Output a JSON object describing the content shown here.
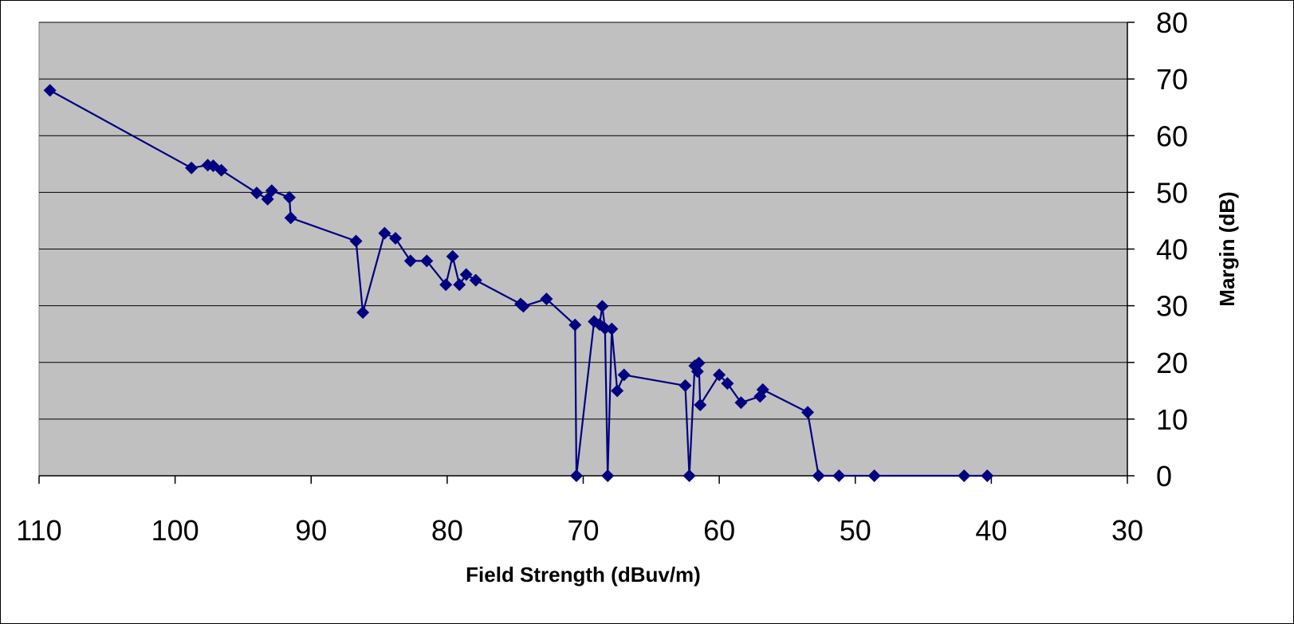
{
  "chart_data": {
    "type": "line",
    "title": "",
    "xlabel": "Field Strength (dBuv/m)",
    "ylabel": "Margin (dB)",
    "xlim": [
      110,
      30
    ],
    "x_reversed": true,
    "ylim": [
      0,
      80
    ],
    "x_ticks": [
      110,
      100,
      90,
      80,
      70,
      60,
      50,
      40,
      30
    ],
    "y_ticks": [
      0,
      10,
      20,
      30,
      40,
      50,
      60,
      70,
      80
    ],
    "y_axis_position": "right",
    "grid": "horizontal",
    "plot_background": "#C0C0C0",
    "series_color": "#000080",
    "marker": "diamond",
    "series": [
      {
        "points": [
          [
            109.2,
            68.0
          ],
          [
            98.8,
            54.3
          ],
          [
            97.6,
            54.8
          ],
          [
            97.2,
            54.7
          ],
          [
            96.6,
            53.9
          ],
          [
            94.0,
            49.9
          ],
          [
            93.2,
            48.8
          ],
          [
            92.9,
            50.3
          ],
          [
            91.6,
            49.1
          ],
          [
            91.5,
            45.5
          ],
          [
            86.7,
            41.4
          ],
          [
            86.2,
            28.8
          ],
          [
            84.6,
            42.8
          ],
          [
            83.8,
            41.9
          ],
          [
            82.7,
            37.9
          ],
          [
            81.5,
            37.9
          ],
          [
            80.1,
            33.7
          ],
          [
            79.6,
            38.7
          ],
          [
            79.1,
            33.7
          ],
          [
            78.6,
            35.5
          ],
          [
            77.9,
            34.5
          ],
          [
            74.6,
            30.3
          ],
          [
            74.4,
            29.9
          ],
          [
            72.7,
            31.2
          ],
          [
            70.6,
            26.6
          ],
          [
            70.5,
            0.0
          ],
          [
            69.2,
            27.2
          ],
          [
            68.8,
            26.7
          ],
          [
            68.6,
            29.9
          ],
          [
            68.4,
            26.0
          ],
          [
            68.2,
            0.0
          ],
          [
            67.9,
            25.9
          ],
          [
            67.5,
            15.0
          ],
          [
            67.0,
            17.8
          ],
          [
            62.5,
            15.9
          ],
          [
            62.2,
            0.0
          ],
          [
            61.8,
            19.4
          ],
          [
            61.6,
            18.4
          ],
          [
            61.5,
            19.9
          ],
          [
            61.4,
            12.5
          ],
          [
            60.0,
            17.8
          ],
          [
            59.4,
            16.3
          ],
          [
            58.4,
            12.9
          ],
          [
            57.0,
            14.0
          ],
          [
            56.8,
            15.2
          ],
          [
            53.5,
            11.2
          ],
          [
            52.7,
            0.0
          ],
          [
            51.2,
            0.0
          ],
          [
            48.6,
            0.0
          ],
          [
            42.0,
            0.0
          ],
          [
            40.3,
            0.0
          ]
        ]
      }
    ]
  }
}
